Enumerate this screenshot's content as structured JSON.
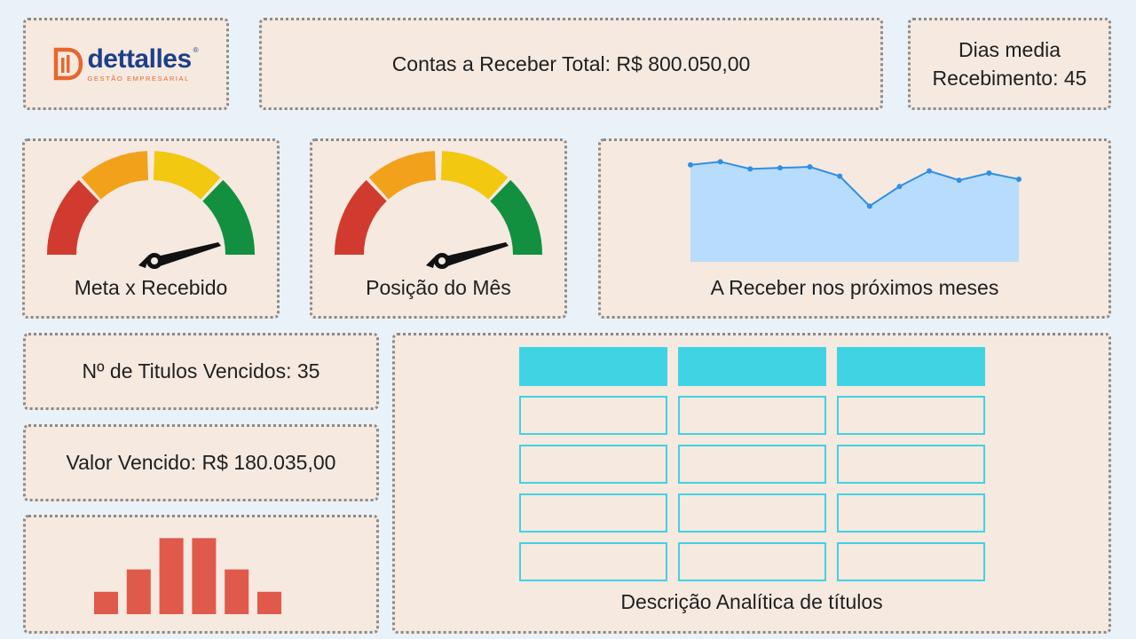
{
  "logo": {
    "name": "dettalles",
    "reg": "®",
    "subtitle": "GESTÃO EMPRESARIAL"
  },
  "kpis": {
    "total_receivable": "Contas a Receber Total: R$ 800.050,00",
    "avg_days_line1": "Dias media",
    "avg_days_line2": "Recebimento: 45",
    "overdue_count": "Nº de Titulos Vencidos: 35",
    "overdue_value": "Valor Vencido: R$ 180.035,00"
  },
  "gauges": {
    "goal_vs_received": {
      "label": "Meta x Recebido"
    },
    "month_position": {
      "label": "Posição do Mês"
    }
  },
  "forecast": {
    "label": "A Receber nos próximos meses"
  },
  "table": {
    "label": "Descrição Analítica de títulos",
    "columns": 3,
    "rows": 4
  },
  "colors": {
    "card_bg": "#f5e9e0",
    "page_bg": "#eaf2f9",
    "gauge_red": "#d13b2f",
    "gauge_orange": "#f2a11b",
    "gauge_yellow": "#f2c811",
    "gauge_green": "#12903f",
    "area_fill": "#b8dcfb",
    "line": "#2f8fe3",
    "bar": "#e05a4c",
    "table_header": "#40d3e3"
  },
  "chart_data": [
    {
      "type": "area",
      "values": [
        94,
        97,
        90,
        91,
        92,
        83,
        54,
        73,
        88,
        79,
        86,
        80
      ]
    },
    {
      "type": "bar",
      "values": [
        1,
        2,
        3.4,
        3.4,
        2,
        1
      ]
    }
  ]
}
